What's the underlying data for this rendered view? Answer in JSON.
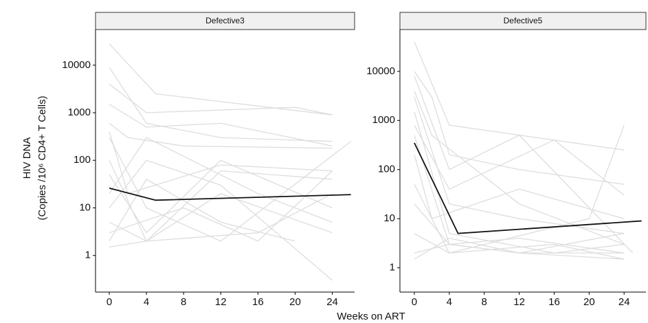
{
  "ylabel": [
    "HIV DNA",
    "(Copies /10⁶ CD4+ T Cells)"
  ],
  "xlabel": "Weeks on ART",
  "chart_data": [
    {
      "type": "line",
      "title": "Defective3",
      "log": true,
      "xlim": [
        -1.48,
        26.4
      ],
      "ylim": [
        0.17,
        56000
      ],
      "xticks": [
        0,
        4,
        8,
        12,
        16,
        20,
        24
      ],
      "yticks": [
        1,
        10,
        100,
        1000,
        10000
      ],
      "series": [
        {
          "color": "#dddddd",
          "x": [
            0,
            5,
            24
          ],
          "values": [
            28000,
            2500,
            900
          ]
        },
        {
          "color": "#dddddd",
          "x": [
            0,
            4,
            12,
            24
          ],
          "values": [
            9000,
            600,
            300,
            250
          ]
        },
        {
          "color": "#dddddd",
          "x": [
            0,
            4,
            12,
            24
          ],
          "values": [
            1500,
            500,
            600,
            200
          ]
        },
        {
          "color": "#dddddd",
          "x": [
            0,
            2,
            8,
            24
          ],
          "values": [
            600,
            300,
            200,
            180
          ]
        },
        {
          "color": "#dddddd",
          "x": [
            0,
            4,
            12,
            24
          ],
          "values": [
            100,
            2,
            60,
            40
          ]
        },
        {
          "color": "#dddddd",
          "x": [
            0,
            4,
            16,
            24
          ],
          "values": [
            20,
            300,
            20,
            5
          ]
        },
        {
          "color": "#dddddd",
          "x": [
            0,
            4,
            12,
            24
          ],
          "values": [
            5,
            2,
            20,
            3
          ]
        },
        {
          "color": "#dddddd",
          "x": [
            0,
            8,
            16,
            24
          ],
          "values": [
            3,
            10,
            2,
            60
          ]
        },
        {
          "color": "#dddddd",
          "x": [
            0,
            4,
            12,
            24
          ],
          "values": [
            50,
            3,
            100,
            10
          ]
        },
        {
          "color": "#dddddd",
          "x": [
            0,
            4,
            12,
            20
          ],
          "values": [
            2,
            40,
            5,
            2
          ]
        },
        {
          "color": "#dddddd",
          "x": [
            0,
            4,
            12,
            26
          ],
          "values": [
            300,
            10,
            2,
            250
          ]
        },
        {
          "color": "#dddddd",
          "x": [
            0,
            4,
            16,
            24
          ],
          "values": [
            1.5,
            2,
            3,
            20
          ]
        },
        {
          "color": "#dddddd",
          "x": [
            0,
            4,
            12,
            24
          ],
          "values": [
            10,
            100,
            30,
            0.3
          ]
        },
        {
          "color": "#dddddd",
          "x": [
            0,
            4,
            20,
            24
          ],
          "values": [
            4000,
            1000,
            1300,
            900
          ]
        },
        {
          "color": "#dddddd",
          "x": [
            0,
            2,
            12,
            24
          ],
          "values": [
            400,
            20,
            80,
            60
          ]
        },
        {
          "color": "#111111",
          "x": [
            0,
            5,
            26
          ],
          "values": [
            26,
            14.5,
            19
          ]
        }
      ]
    },
    {
      "type": "line",
      "title": "Defective5",
      "log": true,
      "xlim": [
        -1.65,
        26.5
      ],
      "ylim": [
        0.32,
        71000
      ],
      "xticks": [
        0,
        4,
        8,
        12,
        16,
        20,
        24
      ],
      "yticks": [
        1,
        10,
        100,
        1000,
        10000
      ],
      "series": [
        {
          "color": "#dddddd",
          "x": [
            0,
            4,
            24
          ],
          "values": [
            40000,
            800,
            250
          ]
        },
        {
          "color": "#dddddd",
          "x": [
            0,
            2,
            4,
            12,
            24
          ],
          "values": [
            10000,
            3000,
            200,
            100,
            50
          ]
        },
        {
          "color": "#dddddd",
          "x": [
            0,
            4,
            12,
            24
          ],
          "values": [
            3000,
            20,
            10,
            5
          ]
        },
        {
          "color": "#dddddd",
          "x": [
            0,
            4,
            16,
            24
          ],
          "values": [
            1500,
            5,
            2,
            3
          ]
        },
        {
          "color": "#dddddd",
          "x": [
            0,
            4,
            12,
            24
          ],
          "values": [
            500,
            3,
            4,
            2
          ]
        },
        {
          "color": "#dddddd",
          "x": [
            0,
            2,
            12,
            24
          ],
          "values": [
            200,
            10,
            40,
            10
          ]
        },
        {
          "color": "#dddddd",
          "x": [
            0,
            4,
            16,
            24
          ],
          "values": [
            50,
            2,
            3,
            1.5
          ]
        },
        {
          "color": "#dddddd",
          "x": [
            0,
            4,
            12,
            24
          ],
          "values": [
            20,
            3,
            2,
            5
          ]
        },
        {
          "color": "#dddddd",
          "x": [
            0,
            4,
            12,
            25
          ],
          "values": [
            8000,
            100,
            500,
            2
          ]
        },
        {
          "color": "#dddddd",
          "x": [
            0,
            4,
            20,
            24
          ],
          "values": [
            5,
            2,
            10,
            800
          ]
        },
        {
          "color": "#dddddd",
          "x": [
            0,
            4,
            12,
            24
          ],
          "values": [
            2,
            3,
            2,
            1.5
          ]
        },
        {
          "color": "#dddddd",
          "x": [
            0,
            4,
            16,
            24
          ],
          "values": [
            800,
            40,
            400,
            30
          ]
        },
        {
          "color": "#dddddd",
          "x": [
            0,
            2,
            12,
            24
          ],
          "values": [
            4000,
            500,
            20,
            3
          ]
        },
        {
          "color": "#dddddd",
          "x": [
            0,
            4,
            12,
            24
          ],
          "values": [
            1.5,
            4,
            2,
            2
          ]
        },
        {
          "color": "#111111",
          "x": [
            0,
            5,
            26
          ],
          "values": [
            350,
            5,
            9
          ]
        }
      ]
    }
  ]
}
